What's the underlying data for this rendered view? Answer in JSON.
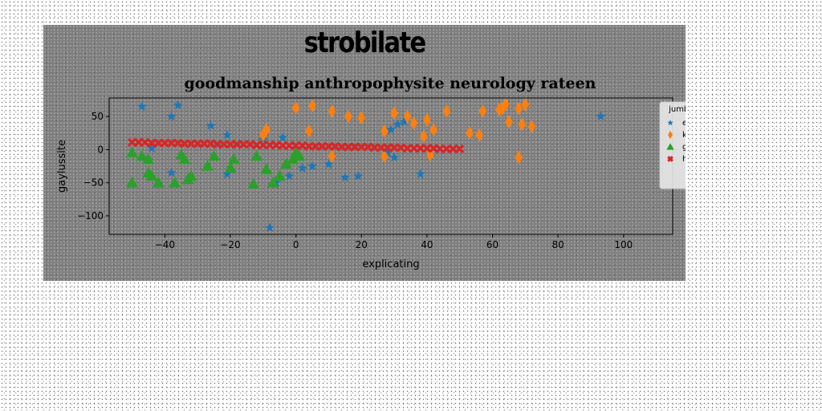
{
  "chart_data": {
    "type": "scatter",
    "suptitle": "strobilate",
    "title": "goodmanship anthropophysite neurology rateen",
    "xlabel": "explicating",
    "ylabel": "gaylussite",
    "xlim": [
      -57,
      115
    ],
    "ylim": [
      -128,
      78
    ],
    "xticks": [
      -40,
      -20,
      0,
      20,
      40,
      60,
      80,
      100
    ],
    "yticks": [
      50,
      0,
      -50,
      -100
    ],
    "xtick_labels": [
      "−40",
      "−20",
      "0",
      "20",
      "40",
      "60",
      "80",
      "100"
    ],
    "ytick_labels": [
      "50",
      "0",
      "−50",
      "−100"
    ],
    "grid": false,
    "legend": {
      "title": "jumbuck",
      "placement": "top-right"
    },
    "series": [
      {
        "name": "e",
        "marker": "star",
        "color": "#1f77b4",
        "points": [
          [
            -47,
            65
          ],
          [
            -36,
            67
          ],
          [
            -38,
            50
          ],
          [
            -26,
            36
          ],
          [
            -21,
            22
          ],
          [
            -44,
            2
          ],
          [
            -38,
            -35
          ],
          [
            -21,
            -37
          ],
          [
            -10,
            15
          ],
          [
            -4,
            18
          ],
          [
            -2,
            -40
          ],
          [
            -6,
            -50
          ],
          [
            -8,
            -118
          ],
          [
            2,
            -28
          ],
          [
            5,
            -25
          ],
          [
            10,
            -22
          ],
          [
            15,
            -42
          ],
          [
            19,
            -40
          ],
          [
            29,
            30
          ],
          [
            31,
            38
          ],
          [
            33,
            42
          ],
          [
            28,
            -5
          ],
          [
            30,
            -12
          ],
          [
            38,
            -37
          ],
          [
            93,
            50
          ]
        ]
      },
      {
        "name": "k",
        "marker": "thin_diamond",
        "color": "#ff7f0e",
        "points": [
          [
            -10,
            22
          ],
          [
            -9,
            30
          ],
          [
            0,
            63
          ],
          [
            5,
            66
          ],
          [
            4,
            28
          ],
          [
            11,
            58
          ],
          [
            11,
            -10
          ],
          [
            16,
            50
          ],
          [
            20,
            48
          ],
          [
            27,
            28
          ],
          [
            30,
            55
          ],
          [
            27,
            -10
          ],
          [
            34,
            50
          ],
          [
            36,
            40
          ],
          [
            39,
            20
          ],
          [
            40,
            45
          ],
          [
            42,
            30
          ],
          [
            41,
            -8
          ],
          [
            46,
            58
          ],
          [
            53,
            25
          ],
          [
            57,
            58
          ],
          [
            56,
            22
          ],
          [
            62,
            60
          ],
          [
            64,
            68
          ],
          [
            63,
            62
          ],
          [
            65,
            42
          ],
          [
            68,
            62
          ],
          [
            68,
            -12
          ],
          [
            69,
            38
          ],
          [
            70,
            68
          ],
          [
            72,
            35
          ]
        ]
      },
      {
        "name": "gaster",
        "marker": "triangle",
        "color": "#2ca02c",
        "points": [
          [
            -50,
            -5
          ],
          [
            -50,
            -50
          ],
          [
            -47,
            -10
          ],
          [
            -45,
            -35
          ],
          [
            -44,
            -40
          ],
          [
            -42,
            -50
          ],
          [
            -45,
            -15
          ],
          [
            -37,
            -50
          ],
          [
            -35,
            -8
          ],
          [
            -34,
            -15
          ],
          [
            -33,
            -45
          ],
          [
            -32,
            -40
          ],
          [
            -27,
            -25
          ],
          [
            -25,
            -10
          ],
          [
            -20,
            -28
          ],
          [
            -19,
            -15
          ],
          [
            -13,
            -52
          ],
          [
            -12,
            -10
          ],
          [
            -9,
            -30
          ],
          [
            -7,
            -50
          ],
          [
            -5,
            -40
          ],
          [
            -3,
            -22
          ],
          [
            -1,
            -15
          ],
          [
            0,
            -5
          ],
          [
            1,
            -10
          ]
        ]
      },
      {
        "name": "hotch",
        "marker": "x",
        "color": "#d62728",
        "points": [
          [
            -50,
            11
          ],
          [
            -48,
            11
          ],
          [
            -46,
            11
          ],
          [
            -44,
            10
          ],
          [
            -42,
            10
          ],
          [
            -40,
            10
          ],
          [
            -38,
            10
          ],
          [
            -36,
            10
          ],
          [
            -34,
            9
          ],
          [
            -32,
            9
          ],
          [
            -30,
            9
          ],
          [
            -28,
            9
          ],
          [
            -26,
            9
          ],
          [
            -24,
            8
          ],
          [
            -22,
            8
          ],
          [
            -20,
            8
          ],
          [
            -18,
            8
          ],
          [
            -16,
            8
          ],
          [
            -14,
            8
          ],
          [
            -12,
            7
          ],
          [
            -10,
            7
          ],
          [
            -8,
            7
          ],
          [
            -6,
            7
          ],
          [
            -4,
            6
          ],
          [
            -2,
            6
          ],
          [
            0,
            6
          ],
          [
            2,
            6
          ],
          [
            4,
            5
          ],
          [
            6,
            5
          ],
          [
            8,
            5
          ],
          [
            10,
            5
          ],
          [
            12,
            5
          ],
          [
            14,
            4
          ],
          [
            16,
            4
          ],
          [
            18,
            4
          ],
          [
            20,
            4
          ],
          [
            22,
            4
          ],
          [
            24,
            3
          ],
          [
            26,
            3
          ],
          [
            28,
            3
          ],
          [
            30,
            3
          ],
          [
            32,
            3
          ],
          [
            34,
            2
          ],
          [
            36,
            2
          ],
          [
            38,
            2
          ],
          [
            40,
            2
          ],
          [
            42,
            2
          ],
          [
            44,
            1
          ],
          [
            46,
            1
          ],
          [
            48,
            1
          ],
          [
            50,
            1
          ]
        ]
      }
    ]
  }
}
